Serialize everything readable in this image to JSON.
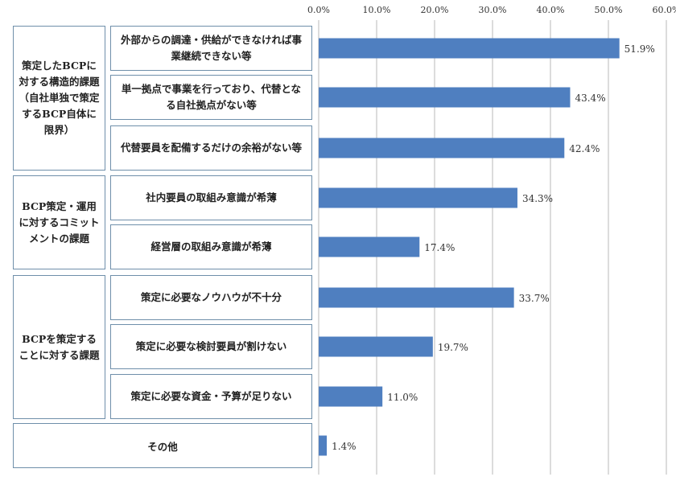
{
  "chart_data": {
    "type": "bar",
    "orientation": "horizontal",
    "x_ticks": [
      "0.0%",
      "10.0%",
      "20.0%",
      "30.0%",
      "40.0%",
      "50.0%",
      "60.0%"
    ],
    "xlim": [
      0,
      60
    ],
    "grid": true,
    "bar_color": "#4f7fc0",
    "groups": [
      {
        "label": "策定したBCPに対する構造的課題（自社単独で策定するBCP自体に限界）",
        "items": [
          {
            "label": "外部からの調達・供給ができなければ事業継続できない等",
            "value": 51.9,
            "value_label": "51.9%"
          },
          {
            "label": "単一拠点で事業を行っており、代替となる自社拠点がない等",
            "value": 43.4,
            "value_label": "43.4%"
          },
          {
            "label": "代替要員を配備するだけの余裕がない等",
            "value": 42.4,
            "value_label": "42.4%"
          }
        ]
      },
      {
        "label": "BCP策定・運用に対するコミットメントの課題",
        "items": [
          {
            "label": "社内要員の取組み意識が希薄",
            "value": 34.3,
            "value_label": "34.3%"
          },
          {
            "label": "経営層の取組み意識が希薄",
            "value": 17.4,
            "value_label": "17.4%"
          }
        ]
      },
      {
        "label": "BCPを策定することに対する課題",
        "items": [
          {
            "label": "策定に必要なノウハウが不十分",
            "value": 33.7,
            "value_label": "33.7%"
          },
          {
            "label": "策定に必要な検討要員が割けない",
            "value": 19.7,
            "value_label": "19.7%"
          },
          {
            "label": "策定に必要な資金・予算が足りない",
            "value": 11.0,
            "value_label": "11.0%"
          }
        ]
      },
      {
        "label": "",
        "items": [
          {
            "label": "その他",
            "value": 1.4,
            "value_label": "1.4%"
          }
        ]
      }
    ]
  }
}
